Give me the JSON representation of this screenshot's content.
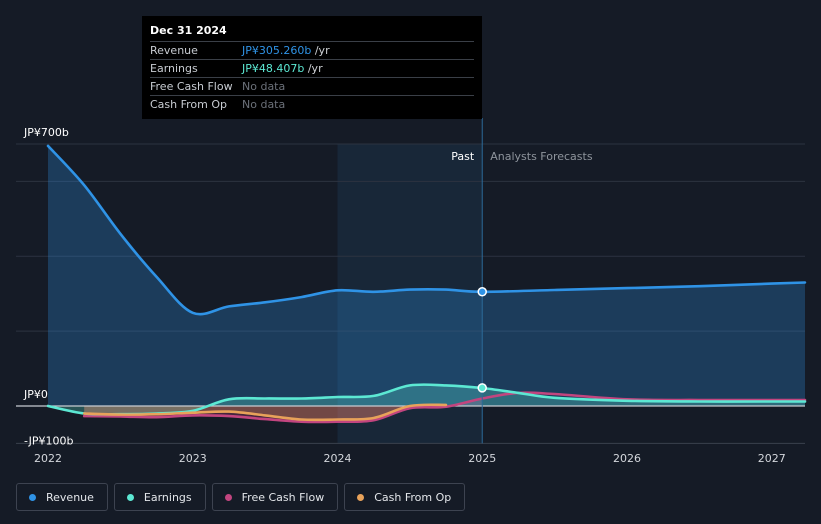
{
  "colors": {
    "background": "#151b26",
    "revenue": "#2f93e6",
    "earnings": "#5ce8d3",
    "free_cash_flow": "#c2457f",
    "cash_from_op": "#e8a25a",
    "grid": "#2c3340",
    "forecast_shade": "#1b3247"
  },
  "tooltip": {
    "date": "Dec 31 2024",
    "rows": [
      {
        "label": "Revenue",
        "value": "JP¥305.260b",
        "suffix": " /yr",
        "color": "#2f93e6"
      },
      {
        "label": "Earnings",
        "value": "JP¥48.407b",
        "suffix": " /yr",
        "color": "#5ce8d3"
      },
      {
        "label": "Free Cash Flow",
        "value": "No data",
        "suffix": "",
        "color": "#6b7079"
      },
      {
        "label": "Cash From Op",
        "value": "No data",
        "suffix": "",
        "color": "#6b7079"
      }
    ]
  },
  "legend": [
    {
      "label": "Revenue",
      "icon": "revenue-dot",
      "color": "#2f93e6"
    },
    {
      "label": "Earnings",
      "icon": "earnings-dot",
      "color": "#5ce8d3"
    },
    {
      "label": "Free Cash Flow",
      "icon": "free-cash-flow-dot",
      "color": "#c2457f"
    },
    {
      "label": "Cash From Op",
      "icon": "cash-from-op-dot",
      "color": "#e8a25a"
    }
  ],
  "chart_data": {
    "type": "line",
    "y_unit": "JP¥ billions",
    "ylim": [
      -100,
      700
    ],
    "y_tick_labels": [
      {
        "value": 700,
        "label": "JP¥700b"
      },
      {
        "value": 0,
        "label": "JP¥0"
      },
      {
        "value": -100,
        "label": "-JP¥100b"
      }
    ],
    "xlim": [
      2022.0,
      2027.23
    ],
    "x_tick_labels": [
      "2022",
      "2023",
      "2024",
      "2025",
      "2026",
      "2027"
    ],
    "past_label": "Past",
    "forecast_label": "Analysts Forecasts",
    "divider_x": 2025.0,
    "highlight_range": [
      2024.0,
      2025.0
    ],
    "grid": true,
    "series": [
      {
        "name": "Revenue",
        "color": "#2f93e6",
        "fill": true,
        "points": [
          [
            2022.0,
            695
          ],
          [
            2022.25,
            590
          ],
          [
            2022.5,
            460
          ],
          [
            2022.75,
            345
          ],
          [
            2023.0,
            249
          ],
          [
            2023.25,
            266
          ],
          [
            2023.5,
            277
          ],
          [
            2023.75,
            291
          ],
          [
            2024.0,
            309
          ],
          [
            2024.25,
            305
          ],
          [
            2024.5,
            311
          ],
          [
            2024.75,
            311
          ],
          [
            2025.0,
            305
          ],
          [
            2025.5,
            310
          ],
          [
            2026.0,
            315
          ],
          [
            2026.5,
            320
          ],
          [
            2027.0,
            327
          ],
          [
            2027.23,
            330
          ]
        ]
      },
      {
        "name": "Earnings",
        "color": "#5ce8d3",
        "fill": true,
        "points": [
          [
            2022.0,
            0
          ],
          [
            2022.25,
            -20
          ],
          [
            2022.5,
            -22
          ],
          [
            2022.75,
            -20
          ],
          [
            2023.0,
            -13
          ],
          [
            2023.25,
            18
          ],
          [
            2023.5,
            20
          ],
          [
            2023.75,
            20
          ],
          [
            2024.0,
            24
          ],
          [
            2024.25,
            27
          ],
          [
            2024.5,
            55
          ],
          [
            2024.75,
            55
          ],
          [
            2025.0,
            48
          ],
          [
            2025.25,
            35
          ],
          [
            2025.5,
            22
          ],
          [
            2026.0,
            14
          ],
          [
            2026.5,
            12
          ],
          [
            2027.0,
            12
          ],
          [
            2027.23,
            12
          ]
        ]
      },
      {
        "name": "Free Cash Flow",
        "color": "#c2457f",
        "fill": true,
        "points": [
          [
            2022.25,
            -27
          ],
          [
            2022.5,
            -28
          ],
          [
            2022.75,
            -30
          ],
          [
            2023.0,
            -25
          ],
          [
            2023.25,
            -27
          ],
          [
            2023.5,
            -35
          ],
          [
            2023.75,
            -42
          ],
          [
            2024.0,
            -42
          ],
          [
            2024.25,
            -38
          ],
          [
            2024.5,
            -6
          ],
          [
            2024.75,
            -2
          ],
          [
            2025.0,
            20
          ],
          [
            2025.25,
            35
          ],
          [
            2025.5,
            32
          ],
          [
            2026.0,
            18
          ],
          [
            2026.5,
            16
          ],
          [
            2027.0,
            16
          ],
          [
            2027.23,
            16
          ]
        ]
      },
      {
        "name": "Cash From Op",
        "color": "#e8a25a",
        "fill": true,
        "points": [
          [
            2022.25,
            -20
          ],
          [
            2022.5,
            -23
          ],
          [
            2022.75,
            -22
          ],
          [
            2023.0,
            -18
          ],
          [
            2023.25,
            -15
          ],
          [
            2023.5,
            -25
          ],
          [
            2023.75,
            -36
          ],
          [
            2024.0,
            -36
          ],
          [
            2024.25,
            -32
          ],
          [
            2024.5,
            0
          ],
          [
            2024.75,
            3
          ]
        ]
      }
    ],
    "marker_points": [
      {
        "series": "Revenue",
        "x": 2025.0,
        "y": 305.26
      },
      {
        "series": "Earnings",
        "x": 2025.0,
        "y": 48.407
      }
    ]
  }
}
